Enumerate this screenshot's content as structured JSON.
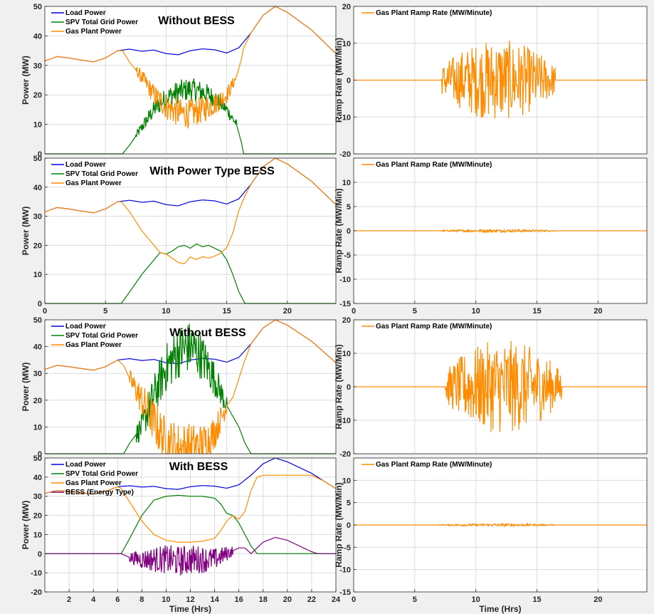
{
  "chart_data": [
    {
      "type": "line",
      "title": "Without BESS",
      "xlabel": "",
      "ylabel": "Power (MW)",
      "xlim": [
        0,
        24
      ],
      "ylim": [
        0,
        50
      ],
      "xticks": [],
      "yticks": [
        0,
        10,
        20,
        30,
        40,
        50
      ],
      "grid": true,
      "legend": "top-left",
      "series": [
        {
          "name": "Load Power",
          "color": "#0000dd",
          "x": [
            0,
            1,
            2,
            3,
            4,
            5,
            6,
            7,
            8,
            9,
            10,
            11,
            12,
            13,
            14,
            15,
            16,
            17,
            18,
            19,
            20,
            21,
            22,
            23,
            24
          ],
          "y": [
            31.5,
            33,
            32.5,
            31.8,
            31.2,
            32.5,
            35,
            35.5,
            34.8,
            35.2,
            34,
            33.6,
            35,
            35.6,
            35.3,
            34.2,
            36,
            41,
            47,
            50,
            48,
            45,
            42,
            38,
            34
          ]
        },
        {
          "name": "SPV Total Grid Power",
          "color": "#008000",
          "x": [
            0,
            6,
            6.4,
            7,
            8,
            9,
            10,
            11,
            12,
            13,
            14,
            15,
            15.8,
            16.2,
            16.4,
            24
          ],
          "y": [
            0,
            0,
            0,
            3,
            9,
            15,
            19,
            21,
            22,
            21,
            19,
            15,
            10,
            4,
            0,
            0
          ],
          "noise": 4,
          "noise_range": [
            7.5,
            15.8
          ]
        },
        {
          "name": "Gas Plant Power",
          "color": "#ff8c00",
          "x": [
            0,
            1,
            2,
            3,
            4,
            5,
            6,
            6.4,
            7,
            8,
            9,
            10,
            11,
            12,
            13,
            14,
            15,
            15.8,
            16.2,
            16.4,
            17,
            18,
            19,
            20,
            21,
            22,
            23,
            24
          ],
          "y": [
            31.5,
            33,
            32.5,
            31.8,
            31.2,
            32.5,
            35,
            35,
            31,
            26,
            20,
            16,
            14,
            13.5,
            15,
            17,
            20,
            26,
            32,
            36,
            41,
            47,
            50,
            48,
            45,
            42,
            38,
            34
          ],
          "noise": 5,
          "noise_range": [
            7.5,
            15.8
          ]
        }
      ]
    },
    {
      "type": "line",
      "title": "",
      "xlabel": "",
      "ylabel": "Ramp Rate (MW/Min)",
      "xlim": [
        0,
        24
      ],
      "ylim": [
        -20,
        20
      ],
      "xticks": [],
      "yticks": [
        -20,
        -10,
        0,
        10,
        20
      ],
      "grid": true,
      "legend": "top-left",
      "series": [
        {
          "name": "Gas Plant Ramp Rate (MW/Minute)",
          "color": "#ff8c00",
          "x": [
            0,
            7.2,
            16.5,
            24
          ],
          "y": [
            0,
            0,
            0,
            0
          ],
          "noise": 11,
          "noise_range": [
            7.2,
            16.5
          ]
        }
      ]
    },
    {
      "type": "line",
      "title": "With Power Type BESS",
      "xlabel": "",
      "ylabel": "Power (MW)",
      "xlim": [
        0,
        24
      ],
      "ylim": [
        0,
        50
      ],
      "xticks": [
        0,
        5,
        10,
        15,
        20
      ],
      "yticks": [
        0,
        10,
        20,
        30,
        40,
        50
      ],
      "grid": true,
      "legend": "top-left",
      "series": [
        {
          "name": "Load Power",
          "color": "#0000dd",
          "x": [
            0,
            1,
            2,
            3,
            4,
            5,
            6,
            7,
            8,
            9,
            10,
            11,
            12,
            13,
            14,
            15,
            16,
            17,
            18,
            19,
            20,
            21,
            22,
            23,
            24
          ],
          "y": [
            31.5,
            33,
            32.5,
            31.8,
            31.2,
            32.5,
            35,
            35.5,
            34.8,
            35.2,
            34,
            33.6,
            35,
            35.6,
            35.3,
            34.2,
            36,
            41,
            47,
            50,
            48,
            45,
            42,
            38,
            34
          ]
        },
        {
          "name": "SPV Total Grid Power",
          "color": "#008000",
          "x": [
            0,
            6.3,
            7,
            8,
            9,
            9.5,
            10,
            10.5,
            11,
            11.5,
            12,
            12.5,
            13,
            13.5,
            14,
            14.5,
            15,
            15.5,
            16,
            16.5,
            24
          ],
          "y": [
            0,
            0,
            4,
            10,
            15,
            17.5,
            17,
            18,
            19.5,
            20,
            19,
            20.5,
            19.5,
            20,
            19,
            18,
            15,
            10,
            4,
            0,
            0
          ]
        },
        {
          "name": "Gas Plant Power",
          "color": "#ff8c00",
          "x": [
            0,
            1,
            2,
            3,
            4,
            5,
            6,
            6.3,
            7,
            8,
            9,
            9.5,
            10,
            10.5,
            11,
            11.5,
            12,
            12.5,
            13,
            13.5,
            14,
            14.5,
            15,
            15.5,
            16,
            16.5,
            17,
            18,
            19,
            20,
            21,
            22,
            23,
            24
          ],
          "y": [
            31.5,
            33,
            32.5,
            31.8,
            31.2,
            32.5,
            35,
            35,
            31.5,
            25,
            20,
            17.5,
            17,
            15.6,
            14.1,
            13.6,
            16,
            15.1,
            16.1,
            15.6,
            16.3,
            17.3,
            19.2,
            24.2,
            32,
            37,
            41,
            47,
            50,
            48,
            45,
            42,
            38,
            34
          ]
        }
      ]
    },
    {
      "type": "line",
      "title": "",
      "xlabel": "",
      "ylabel": "Ramp Rate (MW/Min)",
      "xlim": [
        0,
        24
      ],
      "ylim": [
        -15,
        15
      ],
      "xticks": [
        0,
        5,
        10,
        15,
        20
      ],
      "yticks": [
        -15,
        -10,
        -5,
        0,
        5,
        10
      ],
      "grid": true,
      "legend": "top-left",
      "series": [
        {
          "name": "Gas Plant Ramp Rate (MW/Minute)",
          "color": "#ff8c00",
          "x": [
            0,
            7,
            16.5,
            24
          ],
          "y": [
            0,
            0,
            0,
            0
          ],
          "noise": 0.3,
          "noise_range": [
            7,
            16.5
          ]
        }
      ]
    },
    {
      "type": "line",
      "title": "Without BESS",
      "xlabel": "",
      "ylabel": "Power (MW)",
      "xlim": [
        0,
        24
      ],
      "ylim": [
        0,
        50
      ],
      "xticks": [],
      "yticks": [
        0,
        10,
        20,
        30,
        40,
        50
      ],
      "grid": true,
      "legend": "top-left",
      "series": [
        {
          "name": "Load Power",
          "color": "#0000dd",
          "x": [
            0,
            1,
            2,
            3,
            4,
            5,
            6,
            7,
            8,
            9,
            10,
            11,
            12,
            13,
            14,
            15,
            16,
            17,
            18,
            19,
            20,
            21,
            22,
            23,
            24
          ],
          "y": [
            31.5,
            33,
            32.5,
            31.8,
            31.2,
            32.5,
            35,
            35.5,
            34.8,
            35.2,
            34,
            33.6,
            35,
            35.6,
            35.3,
            34.2,
            36,
            41,
            47,
            50,
            48,
            45,
            42,
            38,
            34
          ]
        },
        {
          "name": "SPV Total Grid Power",
          "color": "#008000",
          "x": [
            0,
            6.5,
            7,
            8,
            9,
            10,
            11,
            12,
            13,
            14,
            15,
            15.5,
            16,
            16.5,
            17,
            24
          ],
          "y": [
            0,
            0,
            4,
            10,
            22,
            32,
            38,
            40,
            36,
            28,
            18,
            14,
            10,
            4,
            0,
            0
          ],
          "noise": 10,
          "noise_range": [
            7.5,
            15
          ]
        },
        {
          "name": "Gas Plant Power",
          "color": "#ff8c00",
          "x": [
            0,
            1,
            2,
            3,
            4,
            5,
            6,
            6.5,
            7,
            8,
            9,
            10,
            11,
            12,
            13,
            14,
            15,
            15.5,
            16,
            16.5,
            17,
            18,
            19,
            20,
            21,
            22,
            23,
            24
          ],
          "y": [
            31.5,
            33,
            32.5,
            31.8,
            31.2,
            32.5,
            35,
            33,
            28,
            20,
            12,
            4,
            2,
            2,
            3,
            8,
            18,
            21,
            28,
            35,
            41,
            47,
            50,
            48,
            45,
            42,
            38,
            34
          ],
          "noise": 10,
          "noise_range": [
            7,
            15
          ]
        }
      ]
    },
    {
      "type": "line",
      "title": "",
      "xlabel": "",
      "ylabel": "Ramp Rate (MW/Min)",
      "xlim": [
        0,
        24
      ],
      "ylim": [
        -20,
        20
      ],
      "xticks": [],
      "yticks": [
        -20,
        -10,
        0,
        10,
        20
      ],
      "grid": true,
      "legend": "top-left",
      "series": [
        {
          "name": "Gas Plant Ramp Rate (MW/Minute)",
          "color": "#ff8c00",
          "x": [
            0,
            7.5,
            17,
            24
          ],
          "y": [
            0,
            0,
            0,
            0
          ],
          "noise": 14,
          "noise_range": [
            7.5,
            17
          ]
        }
      ]
    },
    {
      "type": "line",
      "title": "With BESS",
      "xlabel": "Time (Hrs)",
      "ylabel": "Power (MW)",
      "xlim": [
        0,
        24
      ],
      "ylim": [
        -20,
        50
      ],
      "xticks": [
        2,
        4,
        6,
        8,
        10,
        12,
        14,
        16,
        18,
        20,
        22,
        24
      ],
      "yticks": [
        -20,
        -10,
        0,
        10,
        20,
        30,
        40,
        50
      ],
      "grid": true,
      "legend": "top-left",
      "series": [
        {
          "name": "Load Power",
          "color": "#0000dd",
          "x": [
            0,
            1,
            2,
            3,
            4,
            5,
            6,
            7,
            8,
            9,
            10,
            11,
            12,
            13,
            14,
            15,
            16,
            17,
            18,
            19,
            20,
            21,
            22,
            23,
            24
          ],
          "y": [
            31.5,
            33,
            32.5,
            31.8,
            31.2,
            32.5,
            35,
            35.5,
            34.8,
            35.2,
            34,
            33.6,
            35,
            35.6,
            35.3,
            34.2,
            36,
            41,
            47,
            50,
            48,
            45,
            42,
            38,
            34
          ]
        },
        {
          "name": "SPV Total Grid Power",
          "color": "#008000",
          "x": [
            0,
            6.3,
            7,
            8,
            9,
            10,
            11,
            12,
            13,
            14,
            14.5,
            15,
            15.5,
            16,
            17,
            17.5,
            24
          ],
          "y": [
            0,
            0,
            8,
            20,
            28,
            30,
            30.5,
            30,
            30,
            29,
            26,
            21,
            20,
            16,
            4,
            0,
            0
          ]
        },
        {
          "name": "Gas Plant Power",
          "color": "#ff8c00",
          "x": [
            0,
            1,
            2,
            3,
            4,
            5,
            6,
            6.3,
            7,
            8,
            9,
            10,
            11,
            12,
            13,
            14,
            14.5,
            15,
            15.5,
            16,
            16.5,
            17,
            17.5,
            18,
            19,
            20,
            21,
            22,
            23,
            24
          ],
          "y": [
            31.5,
            33,
            32.5,
            31.8,
            31.2,
            32.5,
            35,
            34,
            27,
            17,
            10,
            7,
            6,
            6,
            6.5,
            8,
            12,
            17,
            20,
            18,
            22,
            33,
            40,
            41,
            41,
            41,
            41,
            41,
            38,
            34
          ]
        },
        {
          "name": "BESS (Energy Type)",
          "color": "#800080",
          "x": [
            0,
            6.3,
            7,
            8,
            9,
            10,
            11,
            12,
            13,
            14,
            15,
            16,
            16.5,
            17,
            18,
            19,
            20,
            21,
            22,
            22.5,
            24
          ],
          "y": [
            0,
            0,
            -2,
            -3,
            -3,
            -3,
            -4,
            -3,
            -3,
            -3,
            0,
            3,
            3,
            0,
            6,
            8.5,
            7,
            4,
            1,
            0,
            0
          ],
          "noise": 8,
          "noise_range": [
            7,
            15.5
          ]
        }
      ]
    },
    {
      "type": "line",
      "title": "",
      "xlabel": "Time (Hrs)",
      "ylabel": "Ramp Rate (MW/Min)",
      "xlim": [
        0,
        24
      ],
      "ylim": [
        -15,
        15
      ],
      "xticks": [
        0,
        5,
        10,
        15,
        20
      ],
      "yticks": [
        -15,
        -10,
        -5,
        0,
        5,
        10
      ],
      "grid": true,
      "legend": "top-left",
      "series": [
        {
          "name": "Gas Plant Ramp Rate (MW/Minute)",
          "color": "#ff8c00",
          "x": [
            0,
            7,
            16.5,
            24
          ],
          "y": [
            0,
            0,
            0,
            0
          ],
          "noise": 0.3,
          "noise_range": [
            7,
            16.5
          ]
        }
      ]
    }
  ]
}
